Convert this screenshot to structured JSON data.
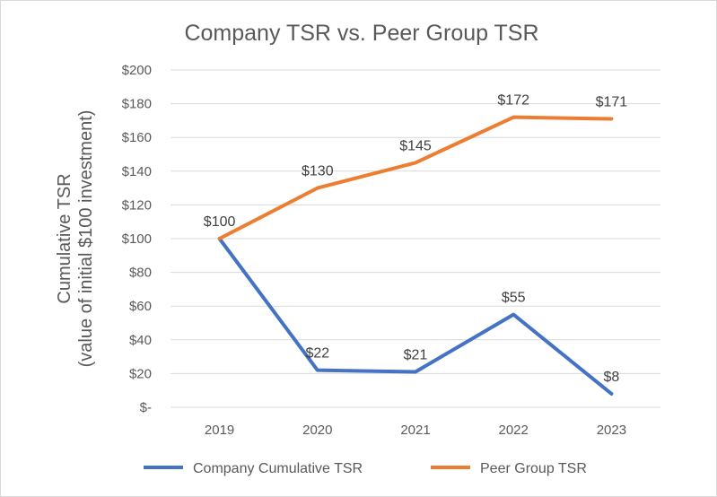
{
  "chart_data": {
    "type": "line",
    "title": "Company TSR vs. Peer Group TSR",
    "ylabel_line1": "Cumulative TSR",
    "ylabel_line2": "(value of initial $100 investment)",
    "xlabel": "",
    "categories": [
      "2019",
      "2020",
      "2021",
      "2022",
      "2023"
    ],
    "ylim": [
      0,
      200
    ],
    "ytick_step": 20,
    "yticks": [
      {
        "value": 0,
        "label": "$-"
      },
      {
        "value": 20,
        "label": "$20"
      },
      {
        "value": 40,
        "label": "$40"
      },
      {
        "value": 60,
        "label": "$60"
      },
      {
        "value": 80,
        "label": "$80"
      },
      {
        "value": 100,
        "label": "$100"
      },
      {
        "value": 120,
        "label": "$120"
      },
      {
        "value": 140,
        "label": "$140"
      },
      {
        "value": 160,
        "label": "$160"
      },
      {
        "value": 180,
        "label": "$180"
      },
      {
        "value": 200,
        "label": "$200"
      }
    ],
    "grid": true,
    "legend_position": "bottom",
    "series": [
      {
        "name": "Company Cumulative TSR",
        "color": "#4472c4",
        "values": [
          100,
          22,
          21,
          55,
          8
        ],
        "labels": [
          "$100",
          "$22",
          "$21",
          "$55",
          "$8"
        ]
      },
      {
        "name": "Peer Group TSR",
        "color": "#ed7d31",
        "values": [
          100,
          130,
          145,
          172,
          171
        ],
        "labels": [
          "$100",
          "$130",
          "$145",
          "$172",
          "$171"
        ]
      }
    ]
  }
}
